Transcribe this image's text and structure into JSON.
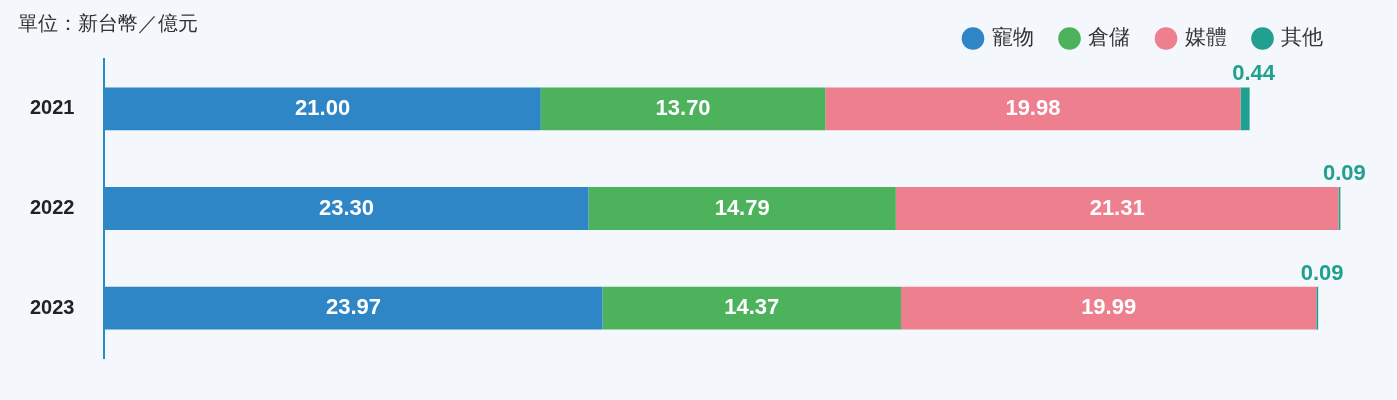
{
  "chart_data": {
    "type": "bar",
    "orientation": "horizontal",
    "stacked": true,
    "title": "單位：新台幣／億元",
    "categories": [
      "2021",
      "2022",
      "2023"
    ],
    "series": [
      {
        "name": "寵物",
        "color": "#2f86c6",
        "values": [
          21.0,
          23.3,
          23.97
        ],
        "value_labels": [
          "21.00",
          "23.30",
          "23.97"
        ]
      },
      {
        "name": "倉儲",
        "color": "#4cb25c",
        "values": [
          13.7,
          14.79,
          14.37
        ],
        "value_labels": [
          "13.70",
          "14.79",
          "14.37"
        ]
      },
      {
        "name": "媒體",
        "color": "#ee7f8e",
        "values": [
          19.98,
          21.31,
          19.99
        ],
        "value_labels": [
          "19.98",
          "21.31",
          "19.99"
        ]
      },
      {
        "name": "其他",
        "color": "#21a08f",
        "values": [
          0.44,
          0.09,
          0.09
        ],
        "value_labels": [
          "0.44",
          "0.09",
          "0.09"
        ]
      }
    ],
    "legend": "top right",
    "grid": false
  }
}
